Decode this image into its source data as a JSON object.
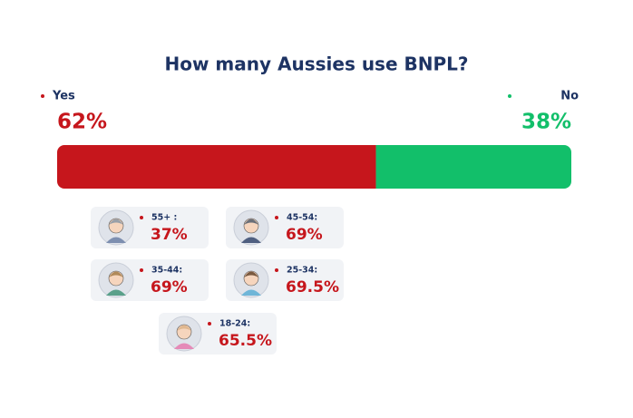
{
  "chart_data": {
    "type": "stacked-bar",
    "title": "How many Aussies use BNPL?",
    "xlim": [
      0,
      100
    ],
    "series": [
      {
        "name": "Yes",
        "color": "#c6161c",
        "values": [
          62
        ],
        "value_labels": [
          "62%"
        ]
      },
      {
        "name": "No",
        "color": "#12bf6a",
        "values": [
          38
        ],
        "value_labels": [
          "38%"
        ]
      }
    ]
  },
  "age_groups": {
    "categories": [
      "55+ :",
      "45-54:",
      "35-44:",
      "25-34:",
      "18-24:"
    ],
    "values": [
      37,
      69,
      69,
      69.5,
      65.5
    ],
    "value_labels": [
      "37%",
      "69%",
      "69%",
      "69.5%",
      "65.5%"
    ],
    "color": "#c6161c"
  }
}
